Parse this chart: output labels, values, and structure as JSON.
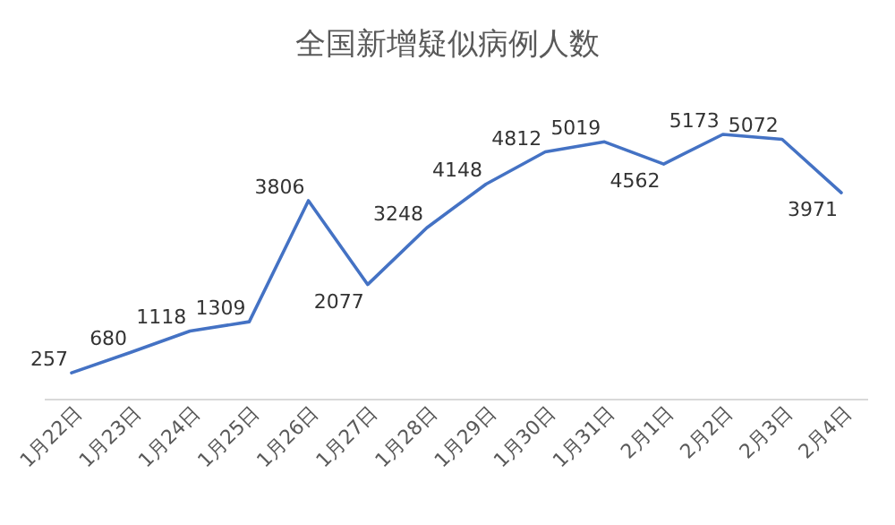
{
  "chart_data": {
    "type": "line",
    "title": "全国新增疑似病例人数",
    "categories": [
      "1月22日",
      "1月23日",
      "1月24日",
      "1月25日",
      "1月26日",
      "1月27日",
      "1月28日",
      "1月29日",
      "1月30日",
      "1月31日",
      "2月1日",
      "2月2日",
      "2月3日",
      "2月4日"
    ],
    "series": [
      {
        "color": "#4472c4",
        "values": [
          257,
          680,
          1118,
          1309,
          3806,
          2077,
          3248,
          4148,
          4812,
          5019,
          4562,
          5173,
          5072,
          3971
        ]
      }
    ],
    "data_labels": true,
    "marker": "none",
    "line_style": "solid"
  }
}
